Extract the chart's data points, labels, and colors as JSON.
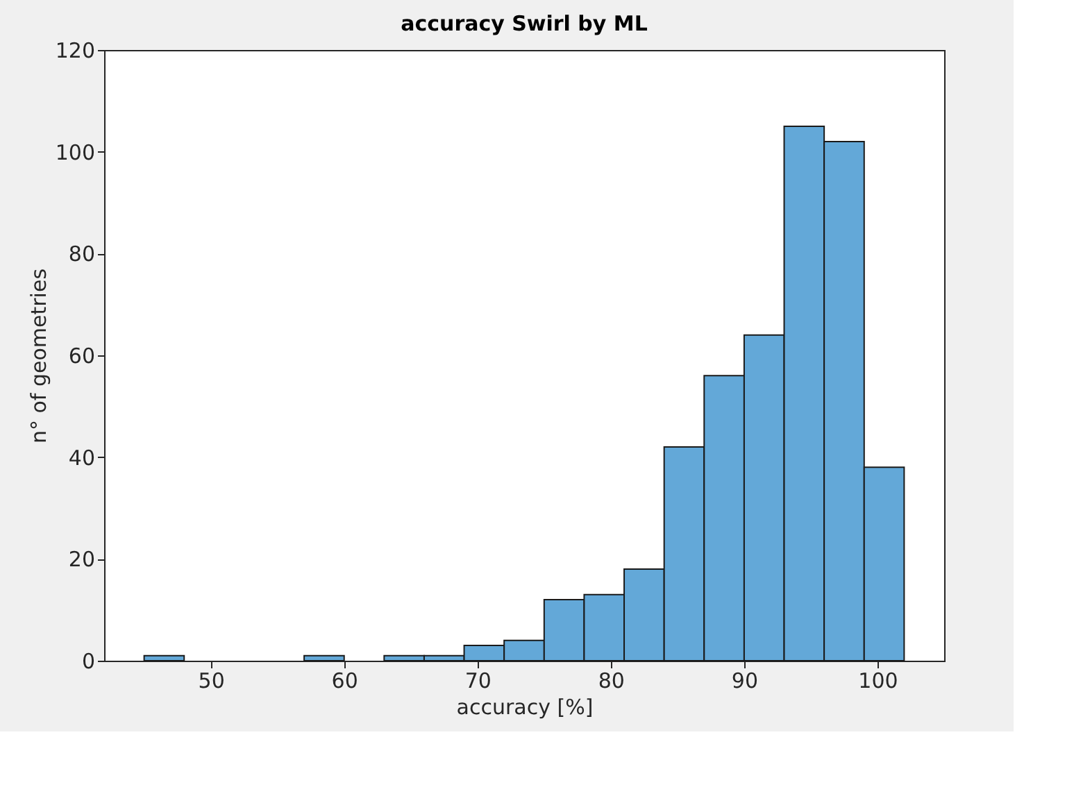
{
  "chart_data": {
    "type": "histogram",
    "title": "accuracy Swirl by ML",
    "xlabel": "accuracy [%]",
    "ylabel": "n° of geometries",
    "bins": [
      45,
      48,
      51,
      54,
      57,
      60,
      63,
      66,
      69,
      72,
      75,
      78,
      81,
      84,
      87,
      90,
      93,
      96,
      99,
      102
    ],
    "values": [
      1,
      0,
      0,
      0,
      1,
      0,
      1,
      1,
      3,
      4,
      12,
      13,
      18,
      42,
      56,
      64,
      105,
      102,
      38
    ],
    "color": "#63a8d8",
    "xlim": [
      42,
      105
    ],
    "xticks": [
      50,
      60,
      70,
      80,
      90,
      100
    ],
    "ylim": [
      0,
      120
    ],
    "yticks": [
      0,
      20,
      40,
      60,
      80,
      100,
      120
    ],
    "grid": false
  }
}
